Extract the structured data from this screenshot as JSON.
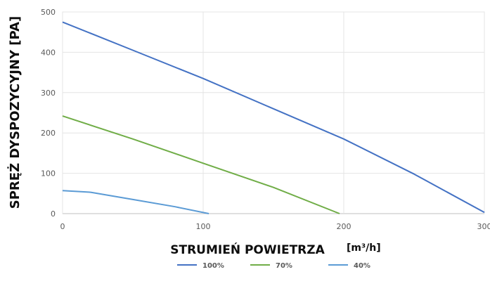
{
  "chart_data": {
    "type": "line",
    "xlabel": "STRUMIEŃ POWIETRZA",
    "xunit": "[m³/h]",
    "ylabel": "SPRĘŻ DYSPOZYCYJNY [PA]",
    "xlim": [
      0,
      300
    ],
    "ylim": [
      0,
      500
    ],
    "x_ticks": [
      0,
      100,
      200,
      300
    ],
    "y_ticks": [
      0,
      100,
      200,
      300,
      400,
      500
    ],
    "grid": true,
    "legend_position": "bottom",
    "series": [
      {
        "name": "100%",
        "color": "#4472c4",
        "points": [
          [
            0,
            475
          ],
          [
            50,
            405
          ],
          [
            100,
            335
          ],
          [
            150,
            260
          ],
          [
            200,
            185
          ],
          [
            250,
            98
          ],
          [
            300,
            3
          ]
        ]
      },
      {
        "name": "70%",
        "color": "#70ad47",
        "points": [
          [
            0,
            242
          ],
          [
            50,
            185
          ],
          [
            100,
            125
          ],
          [
            150,
            65
          ],
          [
            197,
            0
          ]
        ]
      },
      {
        "name": "40%",
        "color": "#5b9bd5",
        "points": [
          [
            0,
            57
          ],
          [
            20,
            53
          ],
          [
            50,
            35
          ],
          [
            80,
            17
          ],
          [
            104,
            0
          ]
        ]
      }
    ]
  }
}
